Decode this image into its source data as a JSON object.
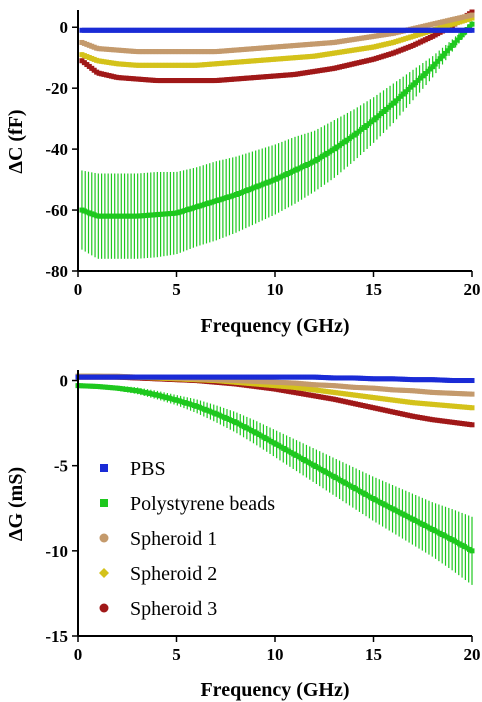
{
  "colors": {
    "PBS": "#1a2bd6",
    "Polystyrene beads": "#1ec81e",
    "Spheroid 1": "#c49a6c",
    "Spheroid 2": "#d4c21a",
    "Spheroid 3": "#a01818"
  },
  "chart_data": [
    {
      "type": "line",
      "xlabel": "Frequency (GHz)",
      "ylabel": "ΔC (fF)",
      "xlim": [
        0,
        20
      ],
      "ylim": [
        -80,
        5
      ],
      "x_ticks": [
        "0",
        "5",
        "10",
        "15",
        "20"
      ],
      "y_ticks": [
        "0",
        "-20",
        "-40",
        "-60",
        "-80"
      ],
      "x": [
        0.2,
        1,
        2,
        3,
        4,
        5,
        6,
        7,
        8,
        9,
        10,
        11,
        12,
        13,
        14,
        15,
        16,
        17,
        18,
        19,
        20
      ],
      "series": [
        {
          "name": "PBS",
          "values": [
            -1,
            -1,
            -1,
            -1,
            -1,
            -1,
            -1,
            -1,
            -1,
            -1,
            -1,
            -1,
            -1,
            -1,
            -1,
            -1,
            -1,
            -1,
            -1,
            -1,
            -1
          ],
          "error": [
            0.3,
            0.3,
            0.3,
            0.3,
            0.3,
            0.3,
            0.3,
            0.3,
            0.3,
            0.3,
            0.3,
            0.3,
            0.3,
            0.3,
            0.3,
            0.3,
            0.3,
            0.3,
            0.3,
            0.3,
            0.3
          ]
        },
        {
          "name": "Polystyrene beads",
          "values": [
            -60,
            -62,
            -62,
            -62,
            -61.5,
            -61,
            -59,
            -57,
            -55,
            -52.5,
            -50,
            -47,
            -44,
            -40,
            -35.5,
            -30.5,
            -25,
            -19,
            -13,
            -6,
            1
          ],
          "error": [
            13,
            14,
            14,
            14,
            14,
            13.5,
            13,
            13,
            12.5,
            12,
            11.5,
            11,
            10,
            9.5,
            8.5,
            7.5,
            6.5,
            5,
            3.5,
            2,
            1
          ]
        },
        {
          "name": "Spheroid 1",
          "values": [
            -5,
            -7,
            -7.5,
            -8,
            -8,
            -8,
            -8,
            -8,
            -7.5,
            -7,
            -6.5,
            -6,
            -5.5,
            -5,
            -4,
            -3,
            -2,
            -0.5,
            1,
            2.5,
            4
          ],
          "error": [
            0.8,
            0.8,
            0.8,
            0.8,
            0.8,
            0.8,
            0.8,
            0.8,
            0.8,
            0.8,
            0.8,
            0.8,
            0.8,
            0.8,
            0.8,
            0.8,
            0.8,
            0.8,
            0.8,
            0.8,
            0.8
          ]
        },
        {
          "name": "Spheroid 2",
          "values": [
            -9,
            -11,
            -12,
            -12.5,
            -12.5,
            -12.5,
            -12.5,
            -12,
            -11.5,
            -11,
            -10.5,
            -10,
            -9.5,
            -8.5,
            -7.5,
            -6.5,
            -5,
            -3,
            -1,
            1,
            3
          ],
          "error": [
            0.8,
            0.8,
            0.8,
            0.8,
            0.8,
            0.8,
            0.8,
            0.8,
            0.8,
            0.8,
            0.8,
            0.8,
            0.8,
            0.8,
            0.8,
            0.8,
            0.8,
            0.8,
            0.8,
            0.8,
            0.8
          ]
        },
        {
          "name": "Spheroid 3",
          "values": [
            -11,
            -15,
            -16.5,
            -17,
            -17.5,
            -17.5,
            -17.5,
            -17.5,
            -17,
            -16.5,
            -16,
            -15.5,
            -14.5,
            -13.5,
            -12,
            -10.5,
            -8.5,
            -6,
            -3,
            0.5,
            5
          ],
          "error": [
            0.8,
            0.8,
            0.8,
            0.8,
            0.8,
            0.8,
            0.8,
            0.8,
            0.8,
            0.8,
            0.8,
            0.8,
            0.8,
            0.8,
            0.8,
            0.8,
            0.8,
            0.8,
            0.8,
            0.8,
            0.8
          ]
        }
      ]
    },
    {
      "type": "line",
      "xlabel": "Frequency (GHz)",
      "ylabel": "ΔG (mS)",
      "xlim": [
        0,
        20
      ],
      "ylim": [
        -15,
        0.5
      ],
      "x_ticks": [
        "0",
        "5",
        "10",
        "15",
        "20"
      ],
      "y_ticks": [
        "0",
        "-5",
        "-10",
        "-15"
      ],
      "legend": "bottom-left",
      "x": [
        0,
        1,
        2,
        3,
        4,
        5,
        6,
        7,
        8,
        9,
        10,
        11,
        12,
        13,
        14,
        15,
        16,
        17,
        18,
        19,
        20
      ],
      "series": [
        {
          "name": "PBS",
          "values": [
            0.2,
            0.2,
            0.2,
            0.2,
            0.2,
            0.2,
            0.2,
            0.2,
            0.2,
            0.2,
            0.2,
            0.2,
            0.2,
            0.15,
            0.15,
            0.1,
            0.1,
            0.05,
            0.05,
            0,
            0
          ],
          "error": [
            0.05,
            0.05,
            0.05,
            0.05,
            0.05,
            0.05,
            0.05,
            0.05,
            0.05,
            0.05,
            0.05,
            0.05,
            0.05,
            0.05,
            0.05,
            0.05,
            0.05,
            0.05,
            0.05,
            0.05,
            0.05
          ]
        },
        {
          "name": "Polystyrene beads",
          "values": [
            -0.3,
            -0.35,
            -0.45,
            -0.6,
            -0.85,
            -1.15,
            -1.5,
            -1.95,
            -2.45,
            -3.05,
            -3.7,
            -4.35,
            -5,
            -5.65,
            -6.3,
            -6.95,
            -7.55,
            -8.15,
            -8.75,
            -9.35,
            -10
          ],
          "error": [
            0.05,
            0.1,
            0.15,
            0.2,
            0.25,
            0.3,
            0.4,
            0.5,
            0.6,
            0.7,
            0.8,
            0.9,
            1,
            1.1,
            1.2,
            1.3,
            1.4,
            1.5,
            1.6,
            1.8,
            2
          ]
        },
        {
          "name": "Spheroid 1",
          "values": [
            0.25,
            0.25,
            0.25,
            0.2,
            0.2,
            0.15,
            0.1,
            0.05,
            0,
            -0.05,
            -0.1,
            -0.15,
            -0.25,
            -0.3,
            -0.4,
            -0.45,
            -0.55,
            -0.6,
            -0.7,
            -0.75,
            -0.8
          ],
          "error": [
            0.1,
            0.1,
            0.1,
            0.1,
            0.1,
            0.1,
            0.1,
            0.1,
            0.1,
            0.1,
            0.1,
            0.1,
            0.1,
            0.1,
            0.1,
            0.1,
            0.1,
            0.1,
            0.1,
            0.1,
            0.1
          ]
        },
        {
          "name": "Spheroid 2",
          "values": [
            0.25,
            0.25,
            0.2,
            0.2,
            0.15,
            0.1,
            0.05,
            0,
            -0.1,
            -0.2,
            -0.3,
            -0.4,
            -0.55,
            -0.7,
            -0.85,
            -1,
            -1.15,
            -1.3,
            -1.4,
            -1.5,
            -1.6
          ],
          "error": [
            0.1,
            0.1,
            0.1,
            0.1,
            0.1,
            0.1,
            0.1,
            0.1,
            0.1,
            0.1,
            0.1,
            0.1,
            0.1,
            0.1,
            0.1,
            0.1,
            0.1,
            0.1,
            0.1,
            0.1,
            0.1
          ]
        },
        {
          "name": "Spheroid 3",
          "values": [
            0.2,
            0.2,
            0.2,
            0.15,
            0.1,
            0.05,
            0,
            -0.1,
            -0.2,
            -0.35,
            -0.5,
            -0.7,
            -0.9,
            -1.1,
            -1.35,
            -1.6,
            -1.85,
            -2.1,
            -2.3,
            -2.45,
            -2.6
          ],
          "error": [
            0.1,
            0.1,
            0.1,
            0.1,
            0.1,
            0.1,
            0.1,
            0.1,
            0.1,
            0.1,
            0.1,
            0.1,
            0.1,
            0.1,
            0.1,
            0.1,
            0.1,
            0.1,
            0.1,
            0.1,
            0.1
          ]
        }
      ]
    }
  ]
}
